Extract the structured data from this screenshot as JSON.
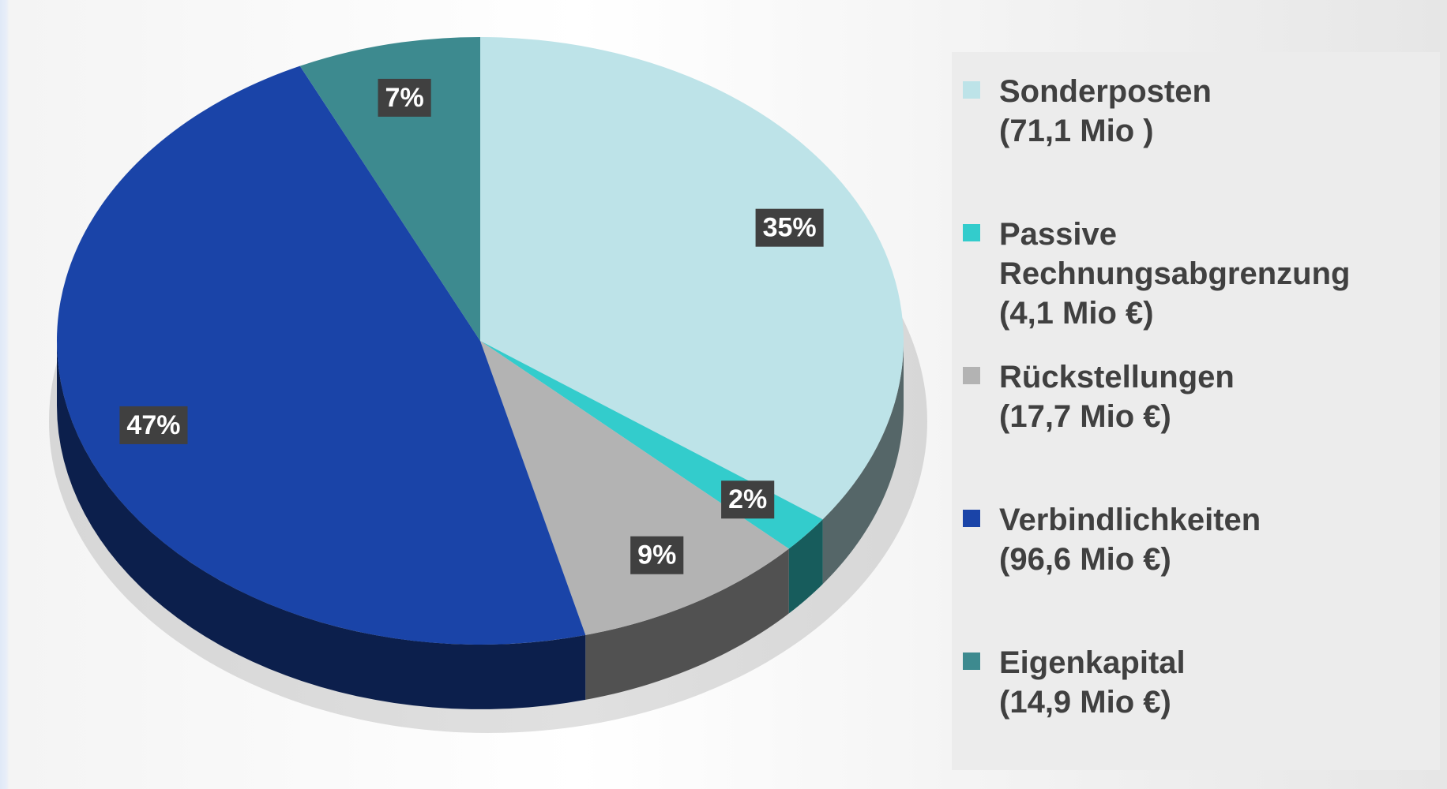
{
  "chart_data": {
    "type": "pie",
    "categories": [
      "Sonderposten\n(71,1 Mio )",
      "Passive\nRechnungsabgrenzung\n(4,1 Mio €)",
      "Rückstellungen\n(17,7 Mio €)",
      "Verbindlichkeiten\n(96,6 Mio €)",
      "Eigenkapital\n(14,9 Mio €)"
    ],
    "values": [
      35,
      2,
      9,
      47,
      7
    ],
    "value_labels": [
      "35%",
      "2%",
      "9%",
      "47%",
      "7%"
    ],
    "colors": [
      "#bde3e8",
      "#33cccc",
      "#b3b3b3",
      "#1a44a8",
      "#3d8a8f"
    ]
  }
}
